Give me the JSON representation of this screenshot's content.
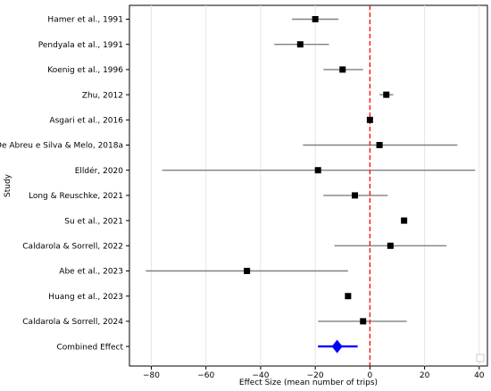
{
  "chart_data": {
    "type": "forest",
    "xlabel": "Effect Size (mean number of trips)",
    "ylabel": "Study",
    "xlim": [
      -88,
      43
    ],
    "xticks": [
      "−80",
      "−60",
      "−40",
      "−20",
      "0",
      "20",
      "40"
    ],
    "xtick_values": [
      -80,
      -60,
      -40,
      -20,
      0,
      20,
      40
    ],
    "grid": "vertical",
    "reference_line": 0,
    "studies": [
      {
        "label": "Hamer et al., 1991",
        "effect": -20,
        "ci": [
          -28.5,
          -11.5
        ]
      },
      {
        "label": "Pendyala et al., 1991",
        "effect": -25.5,
        "ci": [
          -35,
          -15
        ]
      },
      {
        "label": "Koenig et al., 1996",
        "effect": -10,
        "ci": [
          -17,
          -2.5
        ]
      },
      {
        "label": "Zhu, 2012",
        "effect": 6,
        "ci": [
          3.5,
          8.5
        ]
      },
      {
        "label": "Asgari et al., 2016",
        "effect": 0,
        "ci": [
          -0.5,
          0.5
        ]
      },
      {
        "label": "De Abreu e Silva & Melo, 2018a",
        "effect": 3.5,
        "ci": [
          -24.5,
          32
        ]
      },
      {
        "label": "Elldér, 2020",
        "effect": -19,
        "ci": [
          -76,
          38.5
        ]
      },
      {
        "label": "Long & Reuschke, 2021",
        "effect": -5.5,
        "ci": [
          -17,
          6.5
        ]
      },
      {
        "label": "Su et al., 2021",
        "effect": 12.5,
        "ci": [
          12.5,
          12.5
        ]
      },
      {
        "label": "Caldarola & Sorrell, 2022",
        "effect": 7.5,
        "ci": [
          -13,
          28
        ]
      },
      {
        "label": "Abe et al., 2023",
        "effect": -45,
        "ci": [
          -82,
          -8
        ]
      },
      {
        "label": "Huang et al., 2023",
        "effect": -8,
        "ci": [
          -8,
          -8
        ]
      },
      {
        "label": "Caldarola & Sorrell, 2024",
        "effect": -2.5,
        "ci": [
          -19,
          13.5
        ]
      }
    ],
    "combined": {
      "label": "Combined Effect",
      "effect": -12,
      "ci": [
        -19,
        -4.5
      ]
    },
    "colors": {
      "study_marker": "#000000",
      "ci_line": "#808080",
      "combined": "#0000ff",
      "reference_line": "#ff0000",
      "grid": "#e6e6e6"
    }
  }
}
